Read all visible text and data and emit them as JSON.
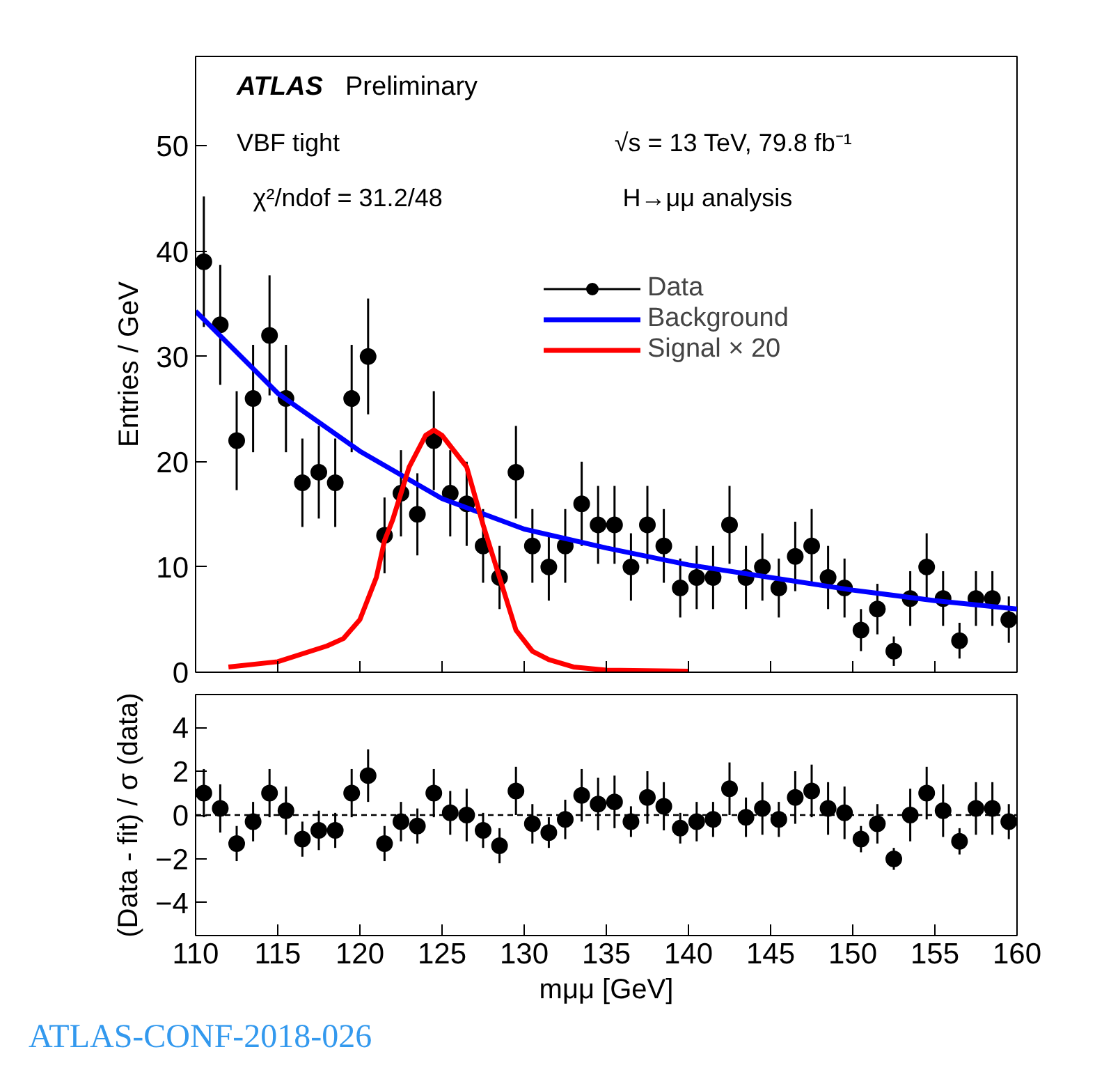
{
  "chart_data": [
    {
      "type": "scatter",
      "ylabel": "Entries / GeV",
      "xlim": [
        110,
        160
      ],
      "xticks": [
        110,
        115,
        120,
        125,
        130,
        135,
        140,
        145,
        150,
        155,
        160
      ],
      "ylim": [
        0,
        58.5
      ],
      "yticks": [
        0,
        10,
        20,
        30,
        40,
        50
      ],
      "tick_labels": "y",
      "grid": false,
      "legend": "top right",
      "annotations": [
        "ATLAS Preliminary",
        "VBF tight",
        "χ²/ndof = 31.2/48",
        "√s = 13 TeV, 79.8 fb⁻¹",
        "H→μμ analysis"
      ],
      "series": [
        {
          "name": "Data",
          "marker": "circle",
          "color": "#000000",
          "x": [
            110.5,
            111.5,
            112.5,
            113.5,
            114.5,
            115.5,
            116.5,
            117.5,
            118.5,
            119.5,
            120.5,
            121.5,
            122.5,
            123.5,
            124.5,
            125.5,
            126.5,
            127.5,
            128.5,
            129.5,
            130.5,
            131.5,
            132.5,
            133.5,
            134.5,
            135.5,
            136.5,
            137.5,
            138.5,
            139.5,
            140.5,
            141.5,
            142.5,
            143.5,
            144.5,
            145.5,
            146.5,
            147.5,
            148.5,
            149.5,
            150.5,
            151.5,
            152.5,
            153.5,
            154.5,
            155.5,
            156.5,
            157.5,
            158.5,
            159.5
          ],
          "values": [
            39,
            33,
            22,
            26,
            32,
            26,
            18,
            19,
            18,
            26,
            30,
            13,
            17,
            15,
            22,
            17,
            16,
            12,
            9,
            19,
            12,
            10,
            12,
            16,
            14,
            14,
            10,
            14,
            12,
            8,
            9,
            9,
            14,
            9,
            10,
            8,
            11,
            12,
            9,
            8,
            4,
            6,
            2,
            7,
            10,
            7,
            3,
            7,
            7,
            5
          ],
          "errors": [
            6.2,
            5.7,
            4.7,
            5.1,
            5.7,
            5.1,
            4.2,
            4.4,
            4.2,
            5.1,
            5.5,
            3.6,
            4.1,
            3.9,
            4.7,
            4.1,
            4.0,
            3.5,
            3.0,
            4.4,
            3.5,
            3.2,
            3.5,
            4.0,
            3.7,
            3.7,
            3.2,
            3.7,
            3.5,
            2.8,
            3.0,
            3.0,
            3.7,
            3.0,
            3.2,
            2.8,
            3.3,
            3.5,
            3.0,
            2.8,
            2.0,
            2.4,
            1.4,
            2.6,
            3.2,
            2.6,
            1.7,
            2.6,
            2.6,
            2.2
          ]
        },
        {
          "name": "Background",
          "type": "line",
          "color": "#0000ff",
          "x": [
            110,
            115,
            120,
            125,
            130,
            135,
            140,
            145,
            150,
            155,
            160
          ],
          "values": [
            34.3,
            26.5,
            21,
            16.5,
            13.6,
            11.8,
            10.2,
            9.0,
            7.8,
            6.8,
            6.0
          ]
        },
        {
          "name": "Signal × 20",
          "type": "line",
          "color": "#ff0000",
          "x": [
            112,
            115,
            118,
            119,
            120,
            121,
            121.5,
            122,
            123,
            124,
            124.5,
            125,
            126,
            126.5,
            127.5,
            128.5,
            129.5,
            130.5,
            131.5,
            133,
            135,
            140
          ],
          "values": [
            0.5,
            1.0,
            2.5,
            3.2,
            5,
            9,
            12.5,
            14.5,
            19.5,
            22.5,
            23,
            22.5,
            20.5,
            19.5,
            14,
            9,
            4,
            2,
            1.2,
            0.5,
            0.2,
            0.1
          ]
        }
      ]
    },
    {
      "type": "scatter",
      "xlabel": "mμμ [GeV]",
      "ylabel": "(Data - fit) / σ (data)",
      "xlim": [
        110,
        160
      ],
      "xticks": [
        110,
        115,
        120,
        125,
        130,
        135,
        140,
        145,
        150,
        155,
        160
      ],
      "ylim": [
        -5.5,
        5.5
      ],
      "yticks": [
        -4,
        -2,
        0,
        2,
        4
      ],
      "grid": false,
      "annotations": [
        "ATLAS-CONF-2018-026"
      ],
      "ref_lines": [
        {
          "axis": "y",
          "value": 0,
          "line_style": "dashed",
          "color": "#000000"
        }
      ],
      "series": [
        {
          "marker": "circle",
          "color": "#000000",
          "x": [
            110.5,
            111.5,
            112.5,
            113.5,
            114.5,
            115.5,
            116.5,
            117.5,
            118.5,
            119.5,
            120.5,
            121.5,
            122.5,
            123.5,
            124.5,
            125.5,
            126.5,
            127.5,
            128.5,
            129.5,
            130.5,
            131.5,
            132.5,
            133.5,
            134.5,
            135.5,
            136.5,
            137.5,
            138.5,
            139.5,
            140.5,
            141.5,
            142.5,
            143.5,
            144.5,
            145.5,
            146.5,
            147.5,
            148.5,
            149.5,
            150.5,
            151.5,
            152.5,
            153.5,
            154.5,
            155.5,
            156.5,
            157.5,
            158.5,
            159.5
          ],
          "values": [
            1.0,
            0.3,
            -1.3,
            -0.3,
            1.0,
            0.2,
            -1.1,
            -0.7,
            -0.7,
            1.0,
            1.8,
            -1.3,
            -0.3,
            -0.5,
            1.0,
            0.1,
            0.0,
            -0.7,
            -1.4,
            1.1,
            -0.4,
            -0.8,
            -0.2,
            0.9,
            0.5,
            0.6,
            -0.3,
            0.8,
            0.4,
            -0.6,
            -0.3,
            -0.2,
            1.2,
            -0.1,
            0.3,
            -0.2,
            0.8,
            1.1,
            0.3,
            0.1,
            -1.1,
            -0.4,
            -2.0,
            0.0,
            1.0,
            0.2,
            -1.2,
            0.3,
            0.3,
            -0.3
          ],
          "errors": [
            1.1,
            1.1,
            0.8,
            0.9,
            1.1,
            1.1,
            0.8,
            0.9,
            0.8,
            1.1,
            1.2,
            0.8,
            0.9,
            0.8,
            1.1,
            1.0,
            1.2,
            0.8,
            0.8,
            1.1,
            0.9,
            0.7,
            0.9,
            1.2,
            1.2,
            1.2,
            0.7,
            1.2,
            1.1,
            0.7,
            0.9,
            0.8,
            1.2,
            0.9,
            1.2,
            0.8,
            1.2,
            1.2,
            1.2,
            1.2,
            0.6,
            0.9,
            0.5,
            1.2,
            1.2,
            1.2,
            0.6,
            1.2,
            1.2,
            0.8
          ]
        }
      ]
    }
  ]
}
